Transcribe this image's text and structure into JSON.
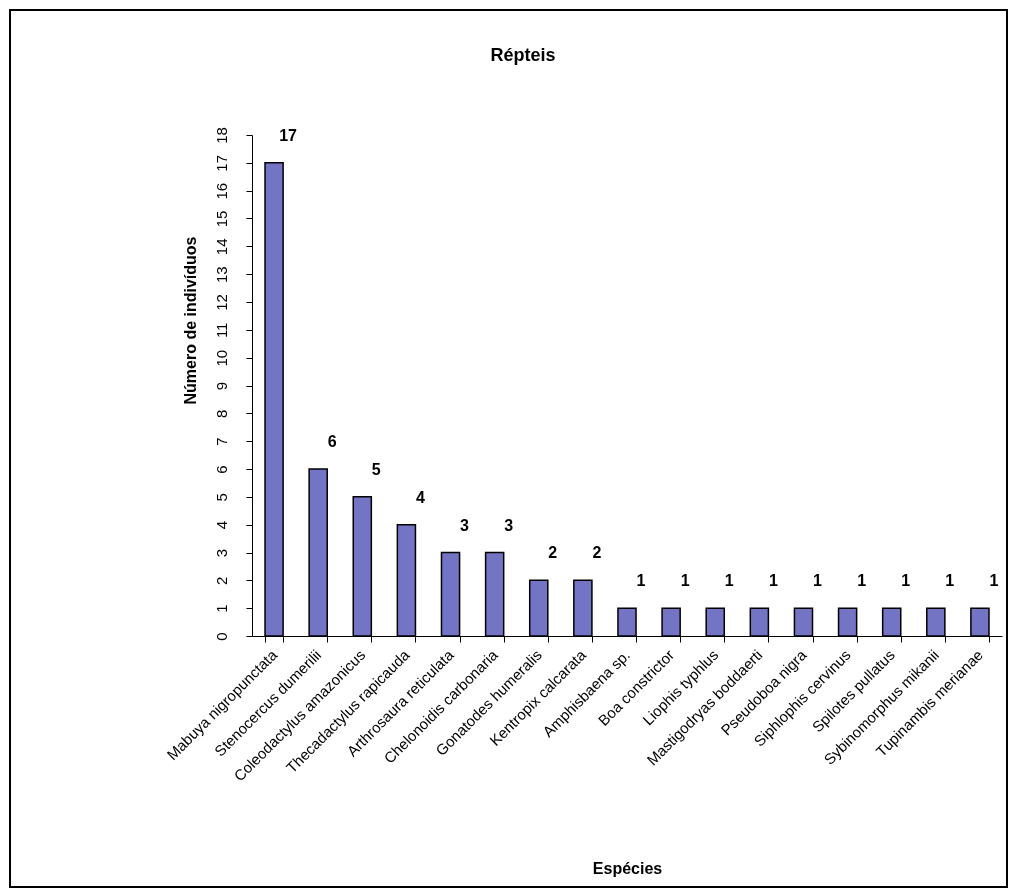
{
  "chart_data": {
    "type": "bar",
    "title": "Répteis",
    "xlabel": "Espécies",
    "ylabel": "Número de indivíduos",
    "categories": [
      "Mabuya nigropunctata",
      "Stenocercus dumerilii",
      "Coleodactylus amazonicus",
      "Thecadactylus rapicauda",
      "Arthrosaura reticulata",
      "Chelonoidis carbonaria",
      "Gonatodes humeralis",
      "Kentropix calcarata",
      "Amphisbaena sp.",
      "Boa constrictor",
      "Liophis typhlus",
      "Mastigodryas boddaerti",
      "Pseudoboa nigra",
      "Siphlophis cervinus",
      "Spilotes pullatus",
      "Sybinomorphus mikanii",
      "Tupinambis merianae"
    ],
    "values": [
      17,
      6,
      5,
      4,
      3,
      3,
      2,
      2,
      1,
      1,
      1,
      1,
      1,
      1,
      1,
      1,
      1
    ],
    "color": "#7474c4",
    "ylim": [
      0,
      18
    ],
    "yticks": [
      0,
      1,
      2,
      3,
      4,
      5,
      6,
      7,
      8,
      9,
      10,
      11,
      12,
      13,
      14,
      15,
      16,
      17,
      18
    ],
    "data_labels": true
  }
}
